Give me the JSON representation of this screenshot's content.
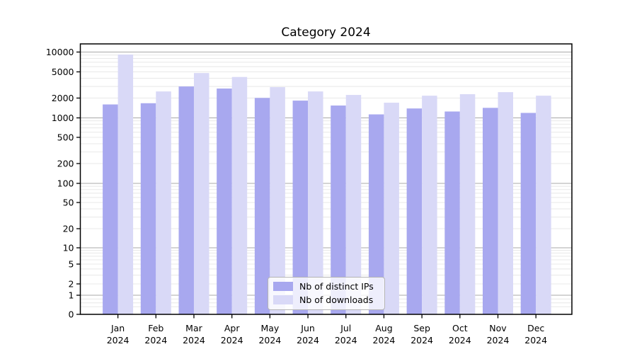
{
  "title": "Category 2024",
  "chart_data": {
    "type": "bar",
    "title": "Category 2024",
    "yscale": "symlog",
    "grid": true,
    "legend_position": "lower center",
    "categories": [
      "Jan 2024",
      "Feb 2024",
      "Mar 2024",
      "Apr 2024",
      "May 2024",
      "Jun 2024",
      "Jul 2024",
      "Aug 2024",
      "Sep 2024",
      "Oct 2024",
      "Nov 2024",
      "Dec 2024"
    ],
    "y_ticks": [
      0,
      1,
      2,
      5,
      10,
      20,
      50,
      100,
      200,
      500,
      1000,
      2000,
      5000,
      10000
    ],
    "ylim": [
      0,
      13000
    ],
    "series": [
      {
        "name": "Nb of distinct IPs",
        "color": "#a8a8ef",
        "values": [
          1600,
          1670,
          3000,
          2790,
          2010,
          1830,
          1540,
          1130,
          1390,
          1250,
          1420,
          1190
        ]
      },
      {
        "name": "Nb of downloads",
        "color": "#d9d9f7",
        "values": [
          9160,
          2520,
          4800,
          4180,
          2930,
          2520,
          2230,
          1700,
          2170,
          2290,
          2460,
          2170
        ]
      }
    ]
  },
  "style_colors": {
    "grid_major": "#a8a8a8",
    "grid_minor": "#e8e8e8",
    "axis": "#000000",
    "legend_border": "#b4b4b4"
  }
}
